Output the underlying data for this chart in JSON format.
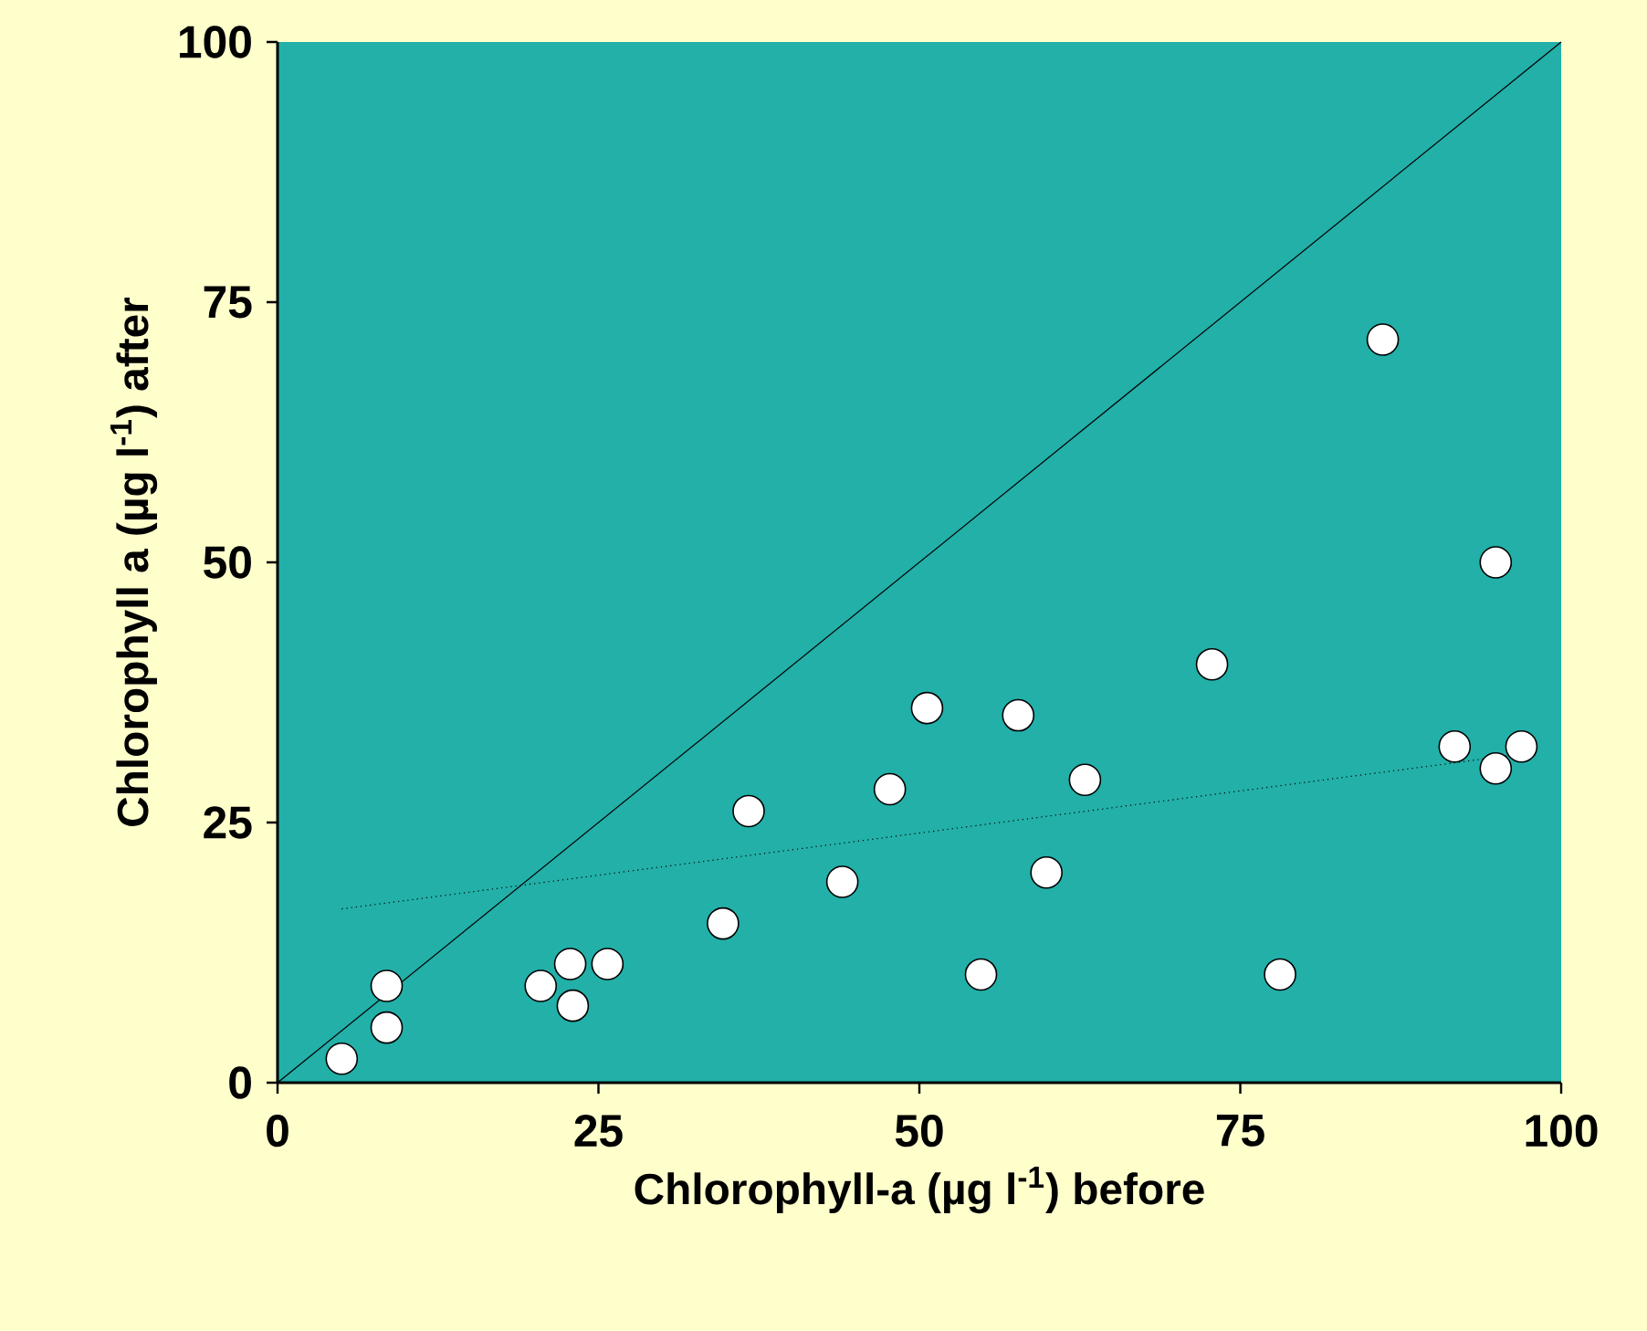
{
  "chart_data": {
    "type": "scatter",
    "xlabel": "Chlorophyll-a (µg l$^{-1}$)  before",
    "ylabel": "Chlorophyll a (µg l$^{-1}$) after",
    "xlim": [
      0,
      100
    ],
    "ylim": [
      0,
      100
    ],
    "xticks": [
      0,
      25,
      50,
      75,
      100
    ],
    "yticks": [
      0,
      25,
      50,
      75,
      100
    ],
    "grid": false,
    "series": [
      {
        "type": "line",
        "color": "#000000",
        "line_style": "solid",
        "marker": "none",
        "x": [
          0,
          100
        ],
        "values": [
          0,
          100
        ]
      },
      {
        "type": "line",
        "color": "#000000",
        "line_style": "dotted",
        "marker": "none",
        "x": [
          5,
          97
        ],
        "values": [
          16.7,
          31.6
        ]
      },
      {
        "color": "#ffffff",
        "marker": "circle",
        "x": [
          5.0,
          8.5,
          8.5,
          20.5,
          22.8,
          23.0,
          25.7,
          34.7,
          36.7,
          44.0,
          47.7,
          50.6,
          54.8,
          57.7,
          59.9,
          62.9,
          72.8,
          78.1,
          86.1,
          91.7,
          94.9,
          94.9,
          96.9
        ],
        "values": [
          2.3,
          9.3,
          5.3,
          9.3,
          11.4,
          7.4,
          11.4,
          15.3,
          26.1,
          19.3,
          28.2,
          36.0,
          10.4,
          35.3,
          20.2,
          29.1,
          40.2,
          10.4,
          71.4,
          32.3,
          30.2,
          50.0,
          32.3
        ]
      }
    ]
  }
}
